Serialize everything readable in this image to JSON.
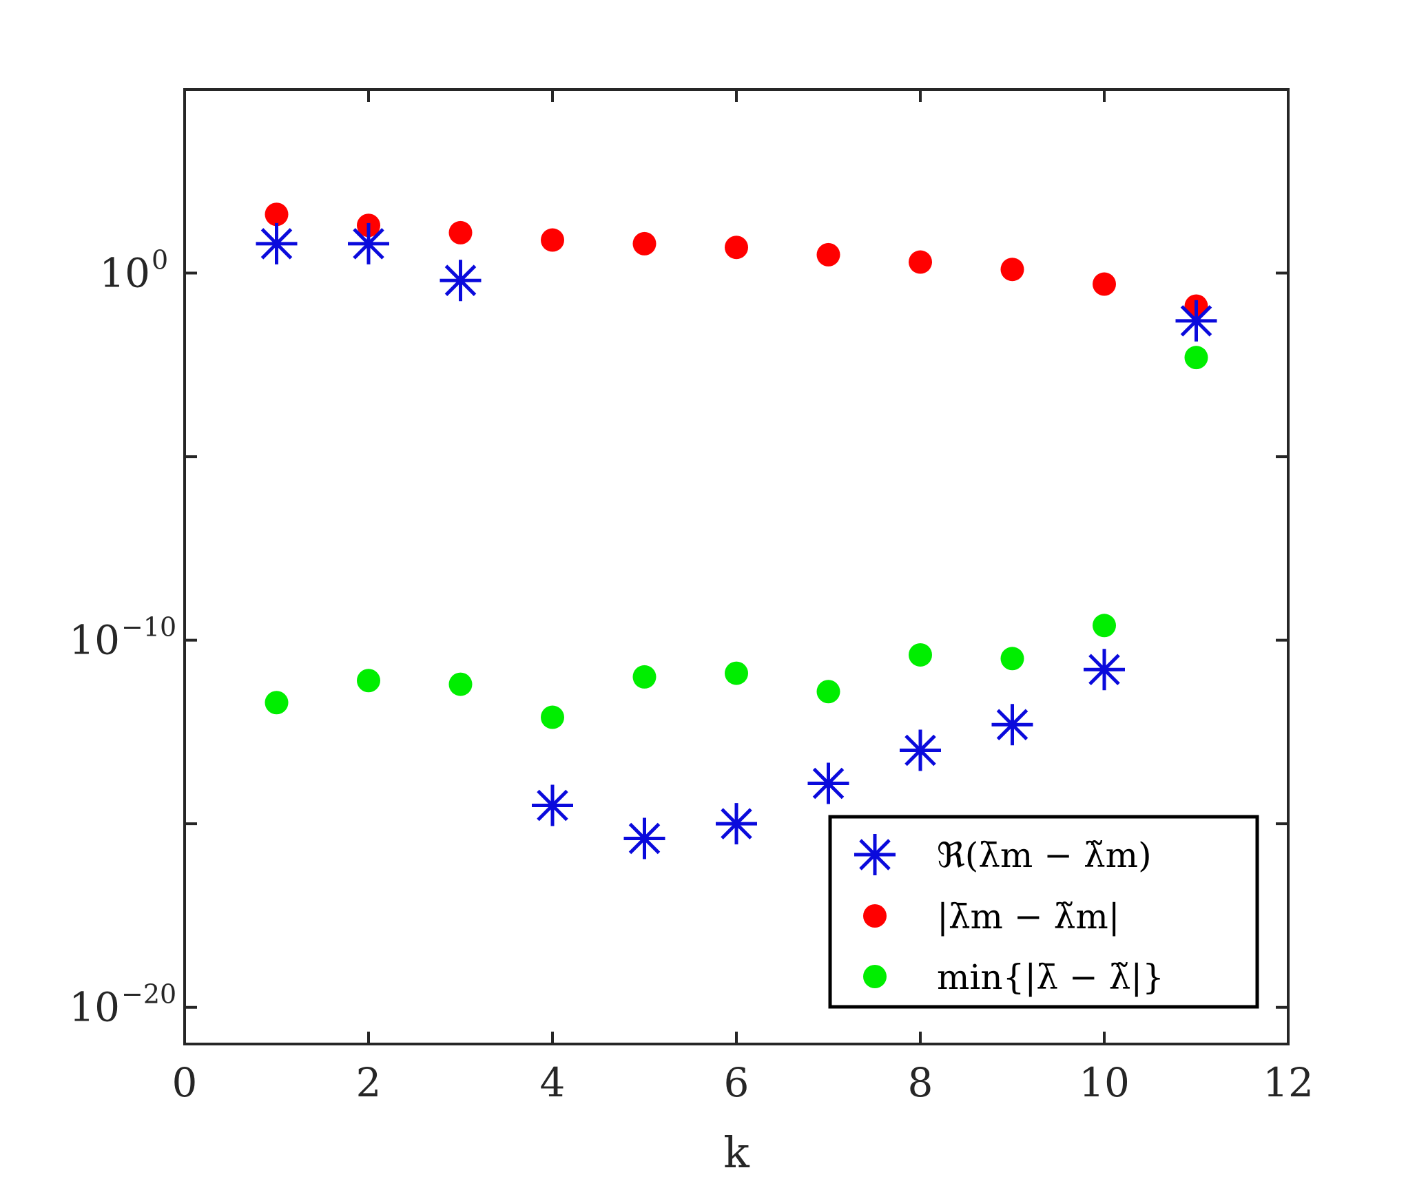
{
  "chart_data": {
    "type": "scatter",
    "title": "",
    "xlabel": "k",
    "ylabel": "",
    "xlim": [
      0,
      12
    ],
    "ylim_exponent": [
      -21,
      5
    ],
    "yscale": "log",
    "grid": false,
    "legend_position": "bottom-right",
    "x_ticks": [
      {
        "value": 0,
        "label": "0"
      },
      {
        "value": 2,
        "label": "2"
      },
      {
        "value": 4,
        "label": "4"
      },
      {
        "value": 6,
        "label": "6"
      },
      {
        "value": 8,
        "label": "8"
      },
      {
        "value": 10,
        "label": "10"
      },
      {
        "value": 12,
        "label": "12"
      }
    ],
    "y_ticks": [
      {
        "exponent": 0,
        "base": "10",
        "sup": "0"
      },
      {
        "exponent": -10,
        "base": "10",
        "sup": "−10"
      },
      {
        "exponent": -20,
        "base": "10",
        "sup": "−20"
      }
    ],
    "y_minor_tick_exponents": [
      -15,
      -5
    ],
    "series": [
      {
        "name": "ℜ(λ̄m − λ̃m)",
        "marker": "asterisk",
        "color": "#0a0adc",
        "x": [
          1,
          2,
          3,
          4,
          5,
          6,
          7,
          8,
          9,
          10,
          11
        ],
        "y_log10": [
          0.8,
          0.8,
          -0.2,
          -14.5,
          -15.4,
          -15.0,
          -13.9,
          -13.0,
          -12.3,
          -10.8,
          -1.3
        ]
      },
      {
        "name": "|λ̄m − λ̃m|",
        "marker": "circle",
        "color": "#ff0000",
        "x": [
          1,
          2,
          3,
          4,
          5,
          6,
          7,
          8,
          9,
          10,
          11
        ],
        "y_log10": [
          1.6,
          1.3,
          1.1,
          0.9,
          0.8,
          0.7,
          0.5,
          0.3,
          0.1,
          -0.3,
          -0.9
        ]
      },
      {
        "name": "min{|λ̄ − λ̃|}",
        "marker": "circle",
        "color": "#00ee00",
        "x": [
          1,
          2,
          3,
          4,
          5,
          6,
          7,
          8,
          9,
          10,
          11
        ],
        "y_log10": [
          -11.7,
          -11.1,
          -11.2,
          -12.1,
          -11.0,
          -10.9,
          -11.4,
          -10.4,
          -10.5,
          -9.6,
          -2.3
        ]
      }
    ]
  },
  "legend": {
    "entries": [
      "ℜ(λ̄m − λ̃m)",
      "|λ̄m − λ̃m|",
      "min{|λ̄ − λ̃|}"
    ]
  }
}
